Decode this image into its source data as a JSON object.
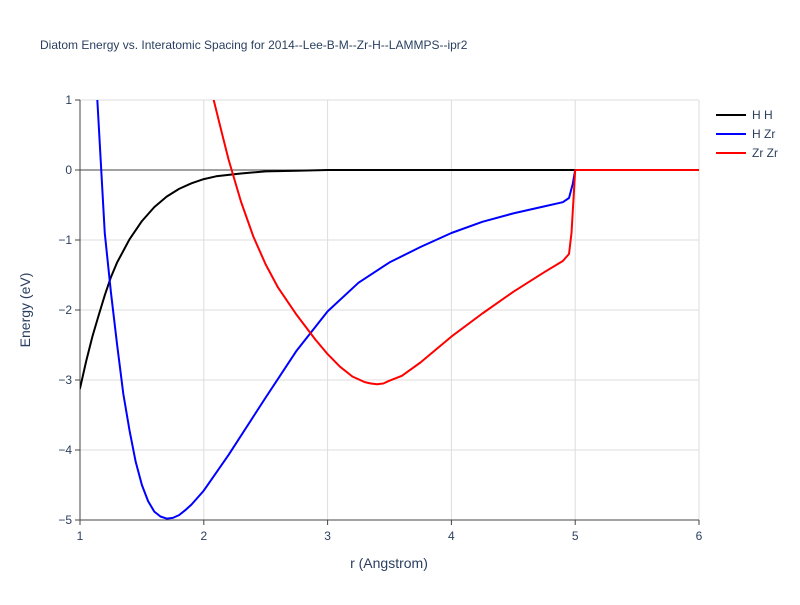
{
  "chart_data": {
    "type": "line",
    "title": "Diatom Energy vs. Interatomic Spacing for 2014--Lee-B-M--Zr-H--LAMMPS--ipr2",
    "xlabel": "r (Angstrom)",
    "ylabel": "Energy (eV)",
    "xlim": [
      1,
      6
    ],
    "ylim": [
      -5,
      1
    ],
    "x_ticks": [
      "1",
      "2",
      "3",
      "4",
      "5",
      "6"
    ],
    "y_ticks": [
      "1",
      "0",
      "−1",
      "−2",
      "−3",
      "−4",
      "−5"
    ],
    "x_tick_values": [
      1,
      2,
      3,
      4,
      5,
      6
    ],
    "y_tick_values": [
      1,
      0,
      -1,
      -2,
      -3,
      -4,
      -5
    ],
    "grid": true,
    "legend_position": "top-right",
    "series": [
      {
        "name": "H H",
        "color": "#000000",
        "x": [
          1.0,
          1.05,
          1.1,
          1.15,
          1.2,
          1.25,
          1.3,
          1.4,
          1.5,
          1.6,
          1.7,
          1.8,
          1.9,
          2.0,
          2.1,
          2.2,
          2.3,
          2.5,
          2.75,
          3.0,
          3.5,
          4.0,
          4.5,
          5.0,
          5.5,
          6.0
        ],
        "y": [
          -3.12,
          -2.73,
          -2.38,
          -2.08,
          -1.79,
          -1.53,
          -1.32,
          -0.99,
          -0.73,
          -0.53,
          -0.38,
          -0.27,
          -0.19,
          -0.13,
          -0.09,
          -0.07,
          -0.05,
          -0.02,
          -0.01,
          0.0,
          0.0,
          0.0,
          0.0,
          0.0,
          0.0,
          0.0
        ]
      },
      {
        "name": "H Zr",
        "color": "#0000ff",
        "x": [
          1.14,
          1.2,
          1.25,
          1.3,
          1.35,
          1.4,
          1.45,
          1.5,
          1.55,
          1.6,
          1.65,
          1.7,
          1.75,
          1.8,
          1.85,
          1.9,
          2.0,
          2.2,
          2.5,
          2.75,
          3.0,
          3.25,
          3.5,
          3.75,
          4.0,
          4.25,
          4.5,
          4.75,
          4.9,
          4.95,
          4.98,
          5.0,
          5.5,
          6.0
        ],
        "y": [
          1.0,
          -0.9,
          -1.75,
          -2.5,
          -3.2,
          -3.72,
          -4.17,
          -4.5,
          -4.73,
          -4.88,
          -4.95,
          -4.98,
          -4.97,
          -4.93,
          -4.86,
          -4.78,
          -4.58,
          -4.07,
          -3.25,
          -2.58,
          -2.02,
          -1.61,
          -1.32,
          -1.1,
          -0.9,
          -0.74,
          -0.62,
          -0.52,
          -0.46,
          -0.4,
          -0.2,
          0.0,
          0.0,
          0.0
        ]
      },
      {
        "name": "Zr Zr",
        "color": "#ff0000",
        "x": [
          2.08,
          2.15,
          2.2,
          2.25,
          2.3,
          2.4,
          2.5,
          2.6,
          2.75,
          2.9,
          3.0,
          3.1,
          3.2,
          3.3,
          3.35,
          3.4,
          3.45,
          3.5,
          3.6,
          3.75,
          4.0,
          4.25,
          4.5,
          4.75,
          4.9,
          4.95,
          4.97,
          5.0,
          5.5,
          6.0
        ],
        "y": [
          1.0,
          0.5,
          0.15,
          -0.15,
          -0.45,
          -0.95,
          -1.35,
          -1.68,
          -2.07,
          -2.42,
          -2.63,
          -2.81,
          -2.95,
          -3.03,
          -3.05,
          -3.06,
          -3.05,
          -3.01,
          -2.94,
          -2.75,
          -2.38,
          -2.05,
          -1.74,
          -1.46,
          -1.3,
          -1.2,
          -0.9,
          0.0,
          0.0,
          0.0
        ]
      }
    ]
  }
}
